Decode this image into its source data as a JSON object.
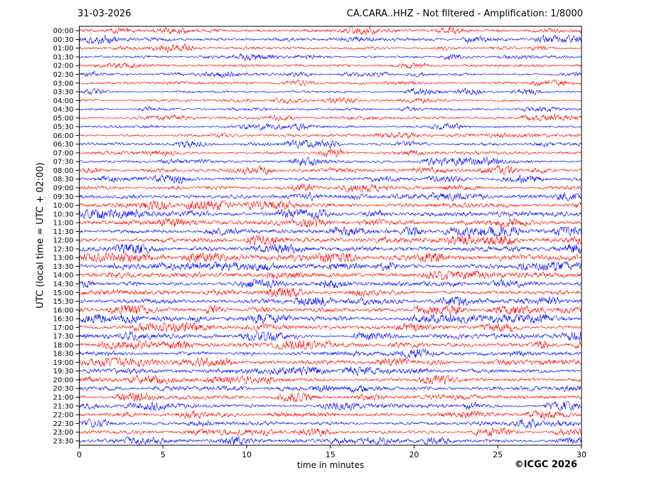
{
  "header": {
    "date": "31-03-2026",
    "station_info": "CA.CARA..HHZ - Not filtered - Amplification: 1/8000"
  },
  "footer": {
    "copyright": "©ICGC 2026"
  },
  "colors": {
    "red": "#ff0000",
    "blue": "#0000ff",
    "grid": "#999999",
    "axis": "#000000"
  },
  "chart_data": {
    "type": "line",
    "subtype": "helicorder-seismogram",
    "title": "CA.CARA..HHZ - Not filtered - Amplification: 1/8000",
    "date": "31-03-2026",
    "xlabel": "time in minutes",
    "ylabel": "UTC (local time = UTC + 02:00)",
    "x_range": [
      0,
      30
    ],
    "x_ticks": [
      0,
      5,
      10,
      15,
      20,
      25,
      30
    ],
    "grid": "vertical dotted lines at 5-minute intervals",
    "legend_position": "none",
    "minutes_per_row": 30,
    "rows": {
      "times": [
        "00:00",
        "00:30",
        "01:00",
        "01:30",
        "02:00",
        "02:30",
        "03:00",
        "03:30",
        "04:00",
        "04:30",
        "05:00",
        "05:30",
        "06:00",
        "06:30",
        "07:00",
        "07:30",
        "08:00",
        "08:30",
        "09:00",
        "09:30",
        "10:00",
        "10:30",
        "11:00",
        "11:30",
        "12:00",
        "12:30",
        "13:00",
        "13:30",
        "14:00",
        "14:30",
        "15:00",
        "15:30",
        "16:00",
        "16:30",
        "17:00",
        "17:30",
        "18:00",
        "18:30",
        "19:00",
        "19:30",
        "20:00",
        "20:30",
        "21:00",
        "21:30",
        "22:00",
        "22:30",
        "23:00",
        "23:30"
      ],
      "color_pattern": [
        "red",
        "blue"
      ],
      "relative_noise_amplitude": [
        1.3,
        1.3,
        1.2,
        1.2,
        1.1,
        1.1,
        1.0,
        1.0,
        1.0,
        1.0,
        1.05,
        1.1,
        1.2,
        1.25,
        1.3,
        1.4,
        1.5,
        1.55,
        1.6,
        1.9,
        2.1,
        2.1,
        2.0,
        2.0,
        2.0,
        2.1,
        2.1,
        2.0,
        2.1,
        2.0,
        2.0,
        2.0,
        2.1,
        2.1,
        1.9,
        1.9,
        1.9,
        1.85,
        1.8,
        1.75,
        1.7,
        1.7,
        1.65,
        1.6,
        1.6,
        1.55,
        1.55,
        1.5
      ]
    }
  }
}
